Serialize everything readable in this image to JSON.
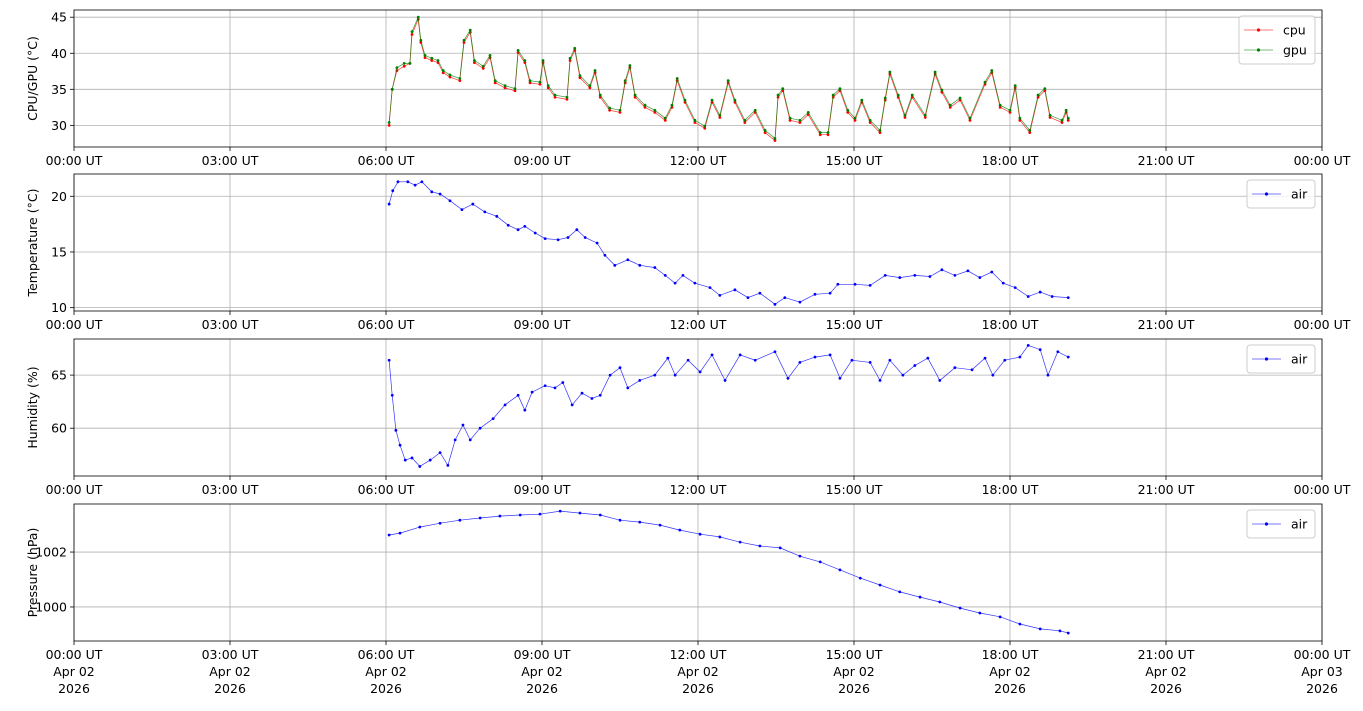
{
  "x_ticks": [
    {
      "time": "00:00 UT",
      "date": "Apr 02",
      "year": "2026"
    },
    {
      "time": "03:00 UT",
      "date": "Apr 02",
      "year": "2026"
    },
    {
      "time": "06:00 UT",
      "date": "Apr 02",
      "year": "2026"
    },
    {
      "time": "09:00 UT",
      "date": "Apr 02",
      "year": "2026"
    },
    {
      "time": "12:00 UT",
      "date": "Apr 02",
      "year": "2026"
    },
    {
      "time": "15:00 UT",
      "date": "Apr 02",
      "year": "2026"
    },
    {
      "time": "18:00 UT",
      "date": "Apr 02",
      "year": "2026"
    },
    {
      "time": "21:00 UT",
      "date": "Apr 02",
      "year": "2026"
    },
    {
      "time": "00:00 UT",
      "date": "Apr 03",
      "year": "2026"
    }
  ],
  "chart_data": [
    {
      "type": "line",
      "ylabel": "CPU/GPU (°C)",
      "xlabel": "",
      "x_unit": "hours UT since 00:00 Apr 02 2026",
      "xlim": [
        0,
        24
      ],
      "ylim": [
        27,
        46
      ],
      "yticks": [
        30,
        35,
        40,
        45
      ],
      "grid": true,
      "legend": "top-right",
      "series": [
        {
          "name": "cpu",
          "color": "#ff0000",
          "x": [
            6.06,
            6.12,
            6.21,
            6.35,
            6.46,
            6.5,
            6.62,
            6.67,
            6.75,
            6.88,
            7.0,
            7.1,
            7.23,
            7.42,
            7.5,
            7.62,
            7.7,
            7.87,
            8.0,
            8.1,
            8.29,
            8.48,
            8.54,
            8.67,
            8.77,
            8.96,
            9.02,
            9.12,
            9.25,
            9.48,
            9.54,
            9.63,
            9.73,
            9.92,
            10.02,
            10.12,
            10.3,
            10.5,
            10.6,
            10.69,
            10.79,
            10.98,
            11.17,
            11.37,
            11.5,
            11.6,
            11.75,
            11.94,
            12.13,
            12.27,
            12.42,
            12.58,
            12.71,
            12.9,
            13.1,
            13.29,
            13.48,
            13.54,
            13.63,
            13.77,
            13.96,
            14.12,
            14.35,
            14.5,
            14.6,
            14.73,
            14.88,
            15.02,
            15.15,
            15.31,
            15.5,
            15.6,
            15.69,
            15.85,
            15.98,
            16.12,
            16.37,
            16.56,
            16.69,
            16.85,
            17.04,
            17.23,
            17.52,
            17.65,
            17.81,
            18.0,
            18.1,
            18.19,
            18.38,
            18.54,
            18.67,
            18.77,
            19.0,
            19.08,
            19.12
          ],
          "y": [
            30.0,
            35.0,
            37.6,
            38.2,
            38.6,
            42.6,
            44.7,
            41.5,
            39.4,
            39.0,
            38.7,
            37.3,
            36.7,
            36.2,
            41.5,
            42.9,
            38.7,
            37.9,
            39.4,
            35.9,
            35.2,
            34.8,
            40.1,
            38.7,
            35.9,
            35.7,
            38.7,
            35.2,
            33.9,
            33.6,
            39.0,
            40.4,
            36.6,
            35.2,
            37.3,
            33.9,
            32.1,
            31.8,
            35.9,
            38.0,
            33.9,
            32.5,
            31.8,
            30.7,
            32.5,
            36.2,
            33.2,
            30.4,
            29.6,
            33.2,
            31.1,
            35.9,
            33.2,
            30.4,
            31.8,
            29.0,
            27.9,
            33.9,
            34.8,
            30.7,
            30.4,
            31.5,
            28.7,
            28.7,
            33.9,
            34.8,
            31.8,
            30.7,
            33.2,
            30.4,
            29.0,
            33.5,
            37.1,
            33.9,
            31.1,
            33.9,
            31.1,
            37.1,
            34.6,
            32.5,
            33.5,
            30.7,
            35.7,
            37.3,
            32.5,
            31.8,
            35.2,
            30.7,
            29.0,
            33.9,
            34.8,
            31.1,
            30.4,
            31.8,
            30.7
          ]
        },
        {
          "name": "gpu",
          "color": "#008000",
          "x": [
            6.06,
            6.12,
            6.21,
            6.35,
            6.46,
            6.5,
            6.62,
            6.67,
            6.75,
            6.88,
            7.0,
            7.1,
            7.23,
            7.42,
            7.5,
            7.62,
            7.7,
            7.87,
            8.0,
            8.1,
            8.29,
            8.48,
            8.54,
            8.67,
            8.77,
            8.96,
            9.02,
            9.12,
            9.25,
            9.48,
            9.54,
            9.63,
            9.73,
            9.92,
            10.02,
            10.12,
            10.3,
            10.5,
            10.6,
            10.69,
            10.79,
            10.98,
            11.17,
            11.37,
            11.5,
            11.6,
            11.75,
            11.94,
            12.13,
            12.27,
            12.42,
            12.58,
            12.71,
            12.9,
            13.1,
            13.29,
            13.48,
            13.54,
            13.63,
            13.77,
            13.96,
            14.12,
            14.35,
            14.5,
            14.6,
            14.73,
            14.88,
            15.02,
            15.15,
            15.31,
            15.5,
            15.6,
            15.69,
            15.85,
            15.98,
            16.12,
            16.37,
            16.56,
            16.69,
            16.85,
            17.04,
            17.23,
            17.52,
            17.65,
            17.81,
            18.0,
            18.1,
            18.19,
            18.38,
            18.54,
            18.67,
            18.77,
            19.0,
            19.08,
            19.12
          ],
          "y": [
            30.4,
            35.0,
            38.0,
            38.6,
            38.6,
            43.0,
            45.0,
            41.8,
            39.7,
            39.3,
            39.0,
            37.6,
            37.0,
            36.5,
            41.8,
            43.2,
            39.0,
            38.2,
            39.7,
            36.2,
            35.5,
            35.1,
            40.4,
            39.0,
            36.2,
            36.0,
            39.0,
            35.5,
            34.2,
            33.9,
            39.3,
            40.7,
            36.9,
            35.5,
            37.6,
            34.2,
            32.4,
            32.1,
            36.2,
            38.3,
            34.2,
            32.8,
            32.1,
            31.0,
            32.8,
            36.5,
            33.5,
            30.7,
            29.9,
            33.5,
            31.4,
            36.2,
            33.5,
            30.7,
            32.1,
            29.3,
            28.2,
            34.2,
            35.1,
            31.0,
            30.7,
            31.8,
            29.0,
            29.0,
            34.2,
            35.1,
            32.1,
            31.0,
            33.5,
            30.7,
            29.3,
            33.8,
            37.4,
            34.2,
            31.4,
            34.2,
            31.4,
            37.4,
            34.9,
            32.8,
            33.8,
            31.0,
            36.0,
            37.6,
            32.8,
            32.1,
            35.5,
            31.0,
            29.3,
            34.2,
            35.1,
            31.4,
            30.7,
            32.1,
            31.0
          ]
        }
      ]
    },
    {
      "type": "line",
      "ylabel": "Temperature (°C)",
      "xlim": [
        0,
        24
      ],
      "ylim": [
        9.7,
        22
      ],
      "yticks": [
        10,
        15,
        20
      ],
      "grid": true,
      "legend": "top-right",
      "series": [
        {
          "name": "air",
          "color": "#0000ff",
          "x": [
            6.06,
            6.13,
            6.23,
            6.42,
            6.56,
            6.69,
            6.88,
            7.04,
            7.23,
            7.46,
            7.67,
            7.9,
            8.13,
            8.35,
            8.54,
            8.67,
            8.87,
            9.06,
            9.31,
            9.5,
            9.67,
            9.83,
            10.06,
            10.21,
            10.4,
            10.65,
            10.88,
            11.17,
            11.37,
            11.56,
            11.71,
            11.94,
            12.23,
            12.42,
            12.71,
            12.96,
            13.19,
            13.48,
            13.67,
            13.96,
            14.25,
            14.54,
            14.69,
            15.02,
            15.31,
            15.6,
            15.88,
            16.17,
            16.46,
            16.69,
            16.94,
            17.19,
            17.42,
            17.65,
            17.87,
            18.1,
            18.35,
            18.58,
            18.81,
            19.12
          ],
          "y": [
            19.3,
            20.5,
            21.3,
            21.3,
            21.0,
            21.3,
            20.4,
            20.2,
            19.6,
            18.8,
            19.3,
            18.6,
            18.2,
            17.4,
            17.0,
            17.3,
            16.7,
            16.2,
            16.1,
            16.3,
            17.0,
            16.3,
            15.8,
            14.7,
            13.8,
            14.3,
            13.8,
            13.6,
            12.9,
            12.2,
            12.9,
            12.2,
            11.8,
            11.1,
            11.6,
            10.9,
            11.3,
            10.3,
            10.9,
            10.5,
            11.2,
            11.3,
            12.1,
            12.1,
            12.0,
            12.9,
            12.7,
            12.9,
            12.8,
            13.4,
            12.9,
            13.3,
            12.7,
            13.2,
            12.2,
            11.8,
            11.0,
            11.4,
            11.0,
            10.9
          ]
        }
      ]
    },
    {
      "type": "line",
      "ylabel": "Humidity (%)",
      "xlim": [
        0,
        24
      ],
      "ylim": [
        55.5,
        68.4
      ],
      "yticks": [
        60,
        65
      ],
      "grid": true,
      "legend": "top-right",
      "series": [
        {
          "name": "air",
          "color": "#0000ff",
          "x": [
            6.06,
            6.12,
            6.19,
            6.27,
            6.37,
            6.5,
            6.65,
            6.85,
            7.04,
            7.19,
            7.33,
            7.48,
            7.62,
            7.81,
            8.06,
            8.29,
            8.54,
            8.67,
            8.81,
            9.06,
            9.25,
            9.4,
            9.58,
            9.77,
            9.96,
            10.12,
            10.31,
            10.5,
            10.65,
            10.88,
            11.17,
            11.42,
            11.56,
            11.81,
            12.04,
            12.27,
            12.52,
            12.81,
            13.1,
            13.48,
            13.73,
            13.96,
            14.25,
            14.54,
            14.73,
            14.96,
            15.31,
            15.5,
            15.69,
            15.94,
            16.17,
            16.42,
            16.65,
            16.94,
            17.27,
            17.52,
            17.67,
            17.9,
            18.19,
            18.35,
            18.58,
            18.73,
            18.92,
            19.12
          ],
          "y": [
            66.4,
            63.1,
            59.8,
            58.4,
            57.0,
            57.2,
            56.4,
            57.0,
            57.7,
            56.5,
            58.9,
            60.3,
            58.9,
            60.0,
            60.9,
            62.2,
            63.1,
            61.7,
            63.4,
            64.0,
            63.8,
            64.3,
            62.2,
            63.3,
            62.8,
            63.1,
            65.0,
            65.7,
            63.8,
            64.5,
            65.0,
            66.6,
            65.0,
            66.4,
            65.3,
            66.9,
            64.5,
            66.9,
            66.4,
            67.2,
            64.7,
            66.2,
            66.7,
            66.9,
            64.7,
            66.4,
            66.2,
            64.5,
            66.4,
            65.0,
            65.9,
            66.6,
            64.5,
            65.7,
            65.5,
            66.6,
            65.0,
            66.4,
            66.7,
            67.8,
            67.4,
            65.0,
            67.2,
            66.7
          ]
        }
      ]
    },
    {
      "type": "line",
      "ylabel": "Pressure (hPa)",
      "xlim": [
        0,
        24
      ],
      "ylim": [
        998.76,
        1003.75
      ],
      "yticks": [
        1000,
        1002
      ],
      "grid": true,
      "legend": "top-right",
      "series": [
        {
          "name": "air",
          "color": "#0000ff",
          "x": [
            6.06,
            6.27,
            6.65,
            7.04,
            7.42,
            7.81,
            8.19,
            8.58,
            8.96,
            9.35,
            9.73,
            10.12,
            10.5,
            10.88,
            11.27,
            11.65,
            12.04,
            12.42,
            12.81,
            13.19,
            13.58,
            13.96,
            14.35,
            14.73,
            15.12,
            15.5,
            15.88,
            16.27,
            16.65,
            17.04,
            17.42,
            17.81,
            18.19,
            18.58,
            18.96,
            19.12
          ],
          "y": [
            1002.62,
            1002.69,
            1002.91,
            1003.05,
            1003.16,
            1003.24,
            1003.31,
            1003.35,
            1003.38,
            1003.49,
            1003.42,
            1003.35,
            1003.16,
            1003.09,
            1002.98,
            1002.8,
            1002.65,
            1002.55,
            1002.36,
            1002.22,
            1002.15,
            1001.85,
            1001.64,
            1001.35,
            1001.05,
            1000.8,
            1000.55,
            1000.36,
            1000.18,
            999.96,
            999.78,
            999.64,
            999.38,
            999.2,
            999.13,
            999.05
          ]
        }
      ]
    }
  ]
}
